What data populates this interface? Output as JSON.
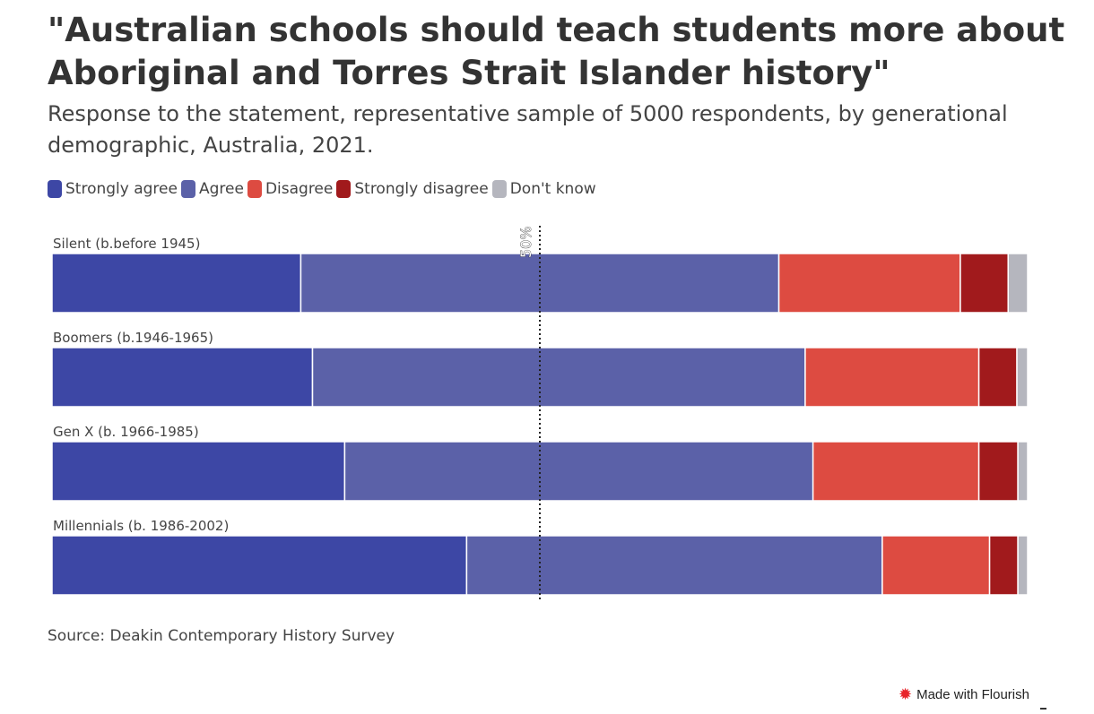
{
  "chart_data": {
    "type": "bar",
    "orientation": "horizontal",
    "stacked": true,
    "title": "\"Australian schools should teach students more about Aboriginal and Torres Strait Islander history\"",
    "subtitle": "Response to the statement, representative sample of 5000 respondents, by generational demographic, Australia, 2021.",
    "categories": [
      "Silent (b.before 1945)",
      "Boomers (b.1946-1965)",
      "Gen X (b. 1966-1985)",
      "Millennials (b. 1986-2002)"
    ],
    "series": [
      {
        "name": "Strongly agree",
        "color": "#3d47a5",
        "values": [
          25.5,
          26.7,
          30.0,
          42.5
        ]
      },
      {
        "name": "Agree",
        "color": "#5b61a8",
        "values": [
          49.0,
          50.5,
          48.0,
          42.6
        ]
      },
      {
        "name": "Disagree",
        "color": "#dd4b41",
        "values": [
          18.6,
          17.8,
          17.0,
          11.0
        ]
      },
      {
        "name": "Strongly disagree",
        "color": "#a11a1c",
        "values": [
          4.9,
          3.9,
          4.0,
          2.9
        ]
      },
      {
        "name": "Don't know",
        "color": "#b5b6be",
        "values": [
          2.0,
          1.1,
          1.0,
          1.0
        ]
      }
    ],
    "xlim": [
      0,
      100
    ],
    "reference_line": {
      "value": 50,
      "label": "50%"
    },
    "legend_position": "top-left"
  },
  "source": "Source: Deakin Contemporary History Survey",
  "credit": "Made with Flourish",
  "credit_icon": "flourish-logo-icon"
}
